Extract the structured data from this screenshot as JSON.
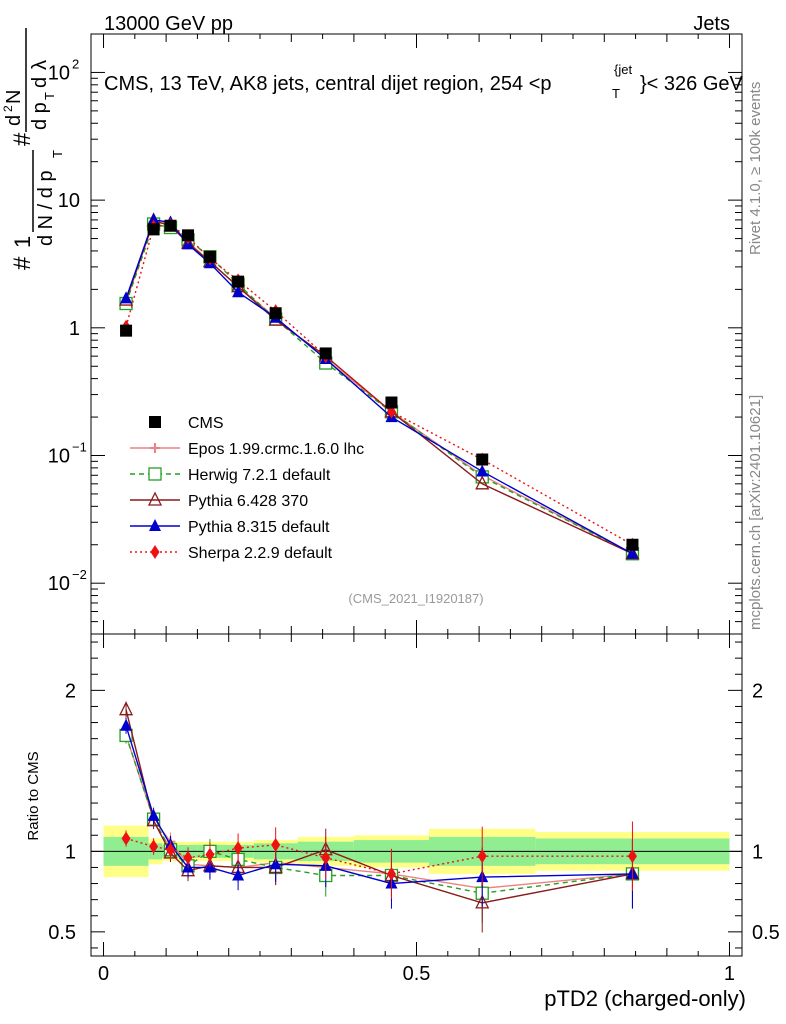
{
  "header": {
    "left": "13000 GeV pp",
    "right": "Jets",
    "title_main": "CMS, 13 TeV, AK8 jets, central dijet region, 254 <p",
    "title_sup": "{jet",
    "title_sub": "T",
    "title_end": "}< 326 GeV",
    "side_top": "Rivet 4.1.0, ≥ 100k events",
    "side_bottom": "mcplots.cern.ch [arXiv:2401.10621]",
    "analysis_id": "(CMS_2021_I1920187)"
  },
  "chart_data": {
    "type": "line",
    "xlabel": "pTD2 (charged-only)",
    "ylabel_main": "1/dN/dp_T dN/dp_T dλ",
    "ylabel_ratio": "Ratio to CMS",
    "xlim": [
      -0.02,
      1.02
    ],
    "ylim_main": [
      0.004,
      200
    ],
    "ylim_ratio": [
      0.35,
      2.35
    ],
    "x_ticks": [
      {
        "v": 0,
        "label": "0"
      },
      {
        "v": 0.5,
        "label": "0.5"
      },
      {
        "v": 1,
        "label": "1"
      }
    ],
    "y_ticks_main": [
      {
        "v": 0.01,
        "base": "10",
        "exp": "−2"
      },
      {
        "v": 0.1,
        "base": "10",
        "exp": "−1"
      },
      {
        "v": 1,
        "base": "1",
        "exp": ""
      },
      {
        "v": 10,
        "base": "10",
        "exp": ""
      },
      {
        "v": 100,
        "base": "10",
        "exp": "2"
      }
    ],
    "y_ticks_ratio": [
      {
        "v": 0.5,
        "label": "0.5"
      },
      {
        "v": 1,
        "label": "1"
      },
      {
        "v": 2,
        "label": "2"
      }
    ],
    "x": [
      0.036,
      0.08,
      0.107,
      0.135,
      0.17,
      0.215,
      0.275,
      0.355,
      0.46,
      0.605,
      0.845
    ],
    "bins": [
      0,
      0.072,
      0.094,
      0.12,
      0.15,
      0.19,
      0.24,
      0.31,
      0.4,
      0.52,
      0.69,
      1.0
    ],
    "data": {
      "name": "CMS",
      "values": [
        0.95,
        5.9,
        6.3,
        5.3,
        3.6,
        2.3,
        1.3,
        0.63,
        0.26,
        0.093,
        0.02
      ]
    },
    "band_green": [
      0.09,
      0.05,
      0.04,
      0.04,
      0.04,
      0.04,
      0.05,
      0.06,
      0.07,
      0.09,
      0.08
    ],
    "band_yellow": [
      0.16,
      0.08,
      0.06,
      0.06,
      0.06,
      0.06,
      0.07,
      0.09,
      0.1,
      0.14,
      0.12
    ],
    "series": [
      {
        "name": "Epos 1.99.crmc.1.6.0 lhc",
        "color": "#f08080",
        "dash": "",
        "marker": "plus",
        "values": [
          1.6,
          6.8,
          6.5,
          4.7,
          3.3,
          2.1,
          1.2,
          0.57,
          0.22,
          0.07,
          0.017
        ],
        "ratio": [
          1.72,
          1.2,
          1.06,
          0.92,
          0.91,
          0.9,
          0.93,
          0.9,
          0.86,
          0.77,
          0.86
        ]
      },
      {
        "name": "Herwig 7.2.1 default",
        "color": "#22a022",
        "dash": "5,4",
        "marker": "square",
        "values": [
          1.55,
          6.5,
          6.1,
          4.9,
          3.6,
          2.2,
          1.17,
          0.53,
          0.22,
          0.068,
          0.017
        ],
        "ratio": [
          1.72,
          1.2,
          1.01,
          0.91,
          1.0,
          0.95,
          0.9,
          0.85,
          0.85,
          0.74,
          0.86
        ]
      },
      {
        "name": "Pythia 6.428 370",
        "color": "#8b1a1a",
        "dash": "",
        "marker": "triangle-open",
        "values": [
          1.65,
          6.9,
          6.3,
          4.6,
          3.3,
          2.1,
          1.15,
          0.6,
          0.22,
          0.06,
          0.017
        ],
        "ratio": [
          1.88,
          1.19,
          0.99,
          0.88,
          0.91,
          0.9,
          0.9,
          1.01,
          0.85,
          0.68,
          0.86
        ]
      },
      {
        "name": "Pythia 8.315 default",
        "color": "#0000cc",
        "dash": "",
        "marker": "triangle",
        "values": [
          1.7,
          7.0,
          6.7,
          4.5,
          3.2,
          1.9,
          1.2,
          0.57,
          0.2,
          0.075,
          0.017
        ],
        "ratio": [
          1.78,
          1.22,
          1.04,
          0.9,
          0.9,
          0.85,
          0.92,
          0.91,
          0.8,
          0.84,
          0.86
        ]
      },
      {
        "name": "Sherpa 2.2.9 default",
        "color": "#ee1111",
        "dash": "2,3",
        "marker": "diamond",
        "values": [
          1.02,
          6.2,
          6.4,
          5.1,
          3.5,
          2.35,
          1.35,
          0.6,
          0.22,
          0.093,
          0.02
        ],
        "ratio": [
          1.08,
          1.03,
          1.01,
          0.96,
          0.98,
          1.02,
          1.04,
          0.96,
          0.86,
          0.97,
          0.97
        ]
      }
    ]
  }
}
